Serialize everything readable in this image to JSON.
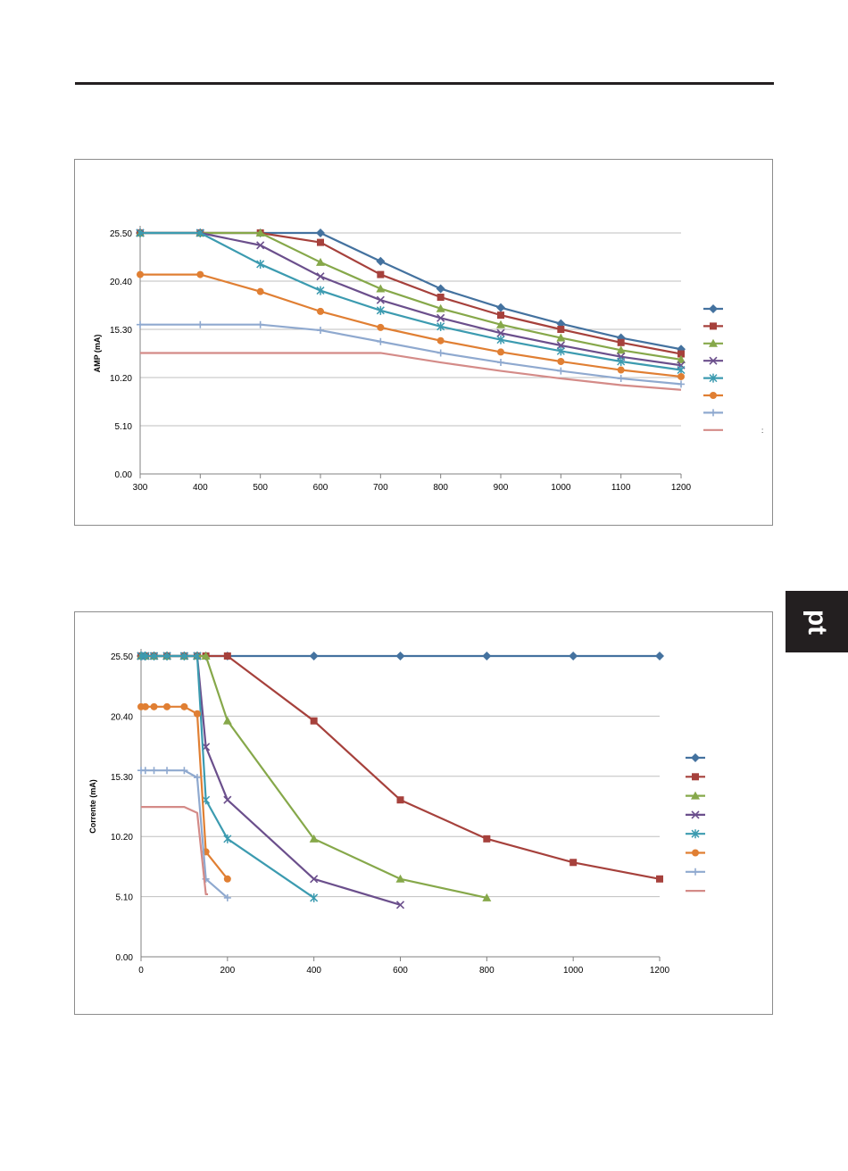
{
  "page": {
    "side_tab": "pt",
    "stray_mark": ":"
  },
  "chart_data": [
    {
      "type": "line",
      "title": "",
      "xlabel": "",
      "ylabel": "AMP (mA)",
      "x": [
        300,
        400,
        500,
        600,
        700,
        800,
        900,
        1000,
        1100,
        1200
      ],
      "x_ticks": [
        300,
        400,
        500,
        600,
        700,
        800,
        900,
        1000,
        1100,
        1200
      ],
      "x_tick_labels": [
        "300",
        "400",
        "500",
        "600",
        "700",
        "800",
        "900",
        "1000",
        "1100",
        "1200"
      ],
      "x_scale": "categorical",
      "y_ticks": [
        0,
        5.1,
        10.2,
        15.3,
        20.4,
        25.5
      ],
      "y_tick_labels": [
        "0.00",
        "5.10",
        "10.20",
        "15.30",
        "20.40",
        "25.50"
      ],
      "ylim": [
        0,
        25.5
      ],
      "grid": "horizontal",
      "legend": "right, entries without text",
      "series": [
        {
          "color": "#44729f",
          "marker": "diamond",
          "points": [
            [
              300,
              25.5
            ],
            [
              400,
              25.5
            ],
            [
              500,
              25.5
            ],
            [
              600,
              25.5
            ],
            [
              700,
              22.5
            ],
            [
              800,
              19.6
            ],
            [
              900,
              17.6
            ],
            [
              1000,
              15.9
            ],
            [
              1100,
              14.4
            ],
            [
              1200,
              13.2
            ]
          ]
        },
        {
          "color": "#a6413c",
          "marker": "square",
          "points": [
            [
              300,
              25.5
            ],
            [
              400,
              25.5
            ],
            [
              500,
              25.5
            ],
            [
              600,
              24.5
            ],
            [
              700,
              21.1
            ],
            [
              800,
              18.7
            ],
            [
              900,
              16.8
            ],
            [
              1000,
              15.3
            ],
            [
              1100,
              13.9
            ],
            [
              1200,
              12.7
            ]
          ]
        },
        {
          "color": "#86a84a",
          "marker": "triangle",
          "points": [
            [
              300,
              25.5
            ],
            [
              400,
              25.5
            ],
            [
              500,
              25.5
            ],
            [
              600,
              22.4
            ],
            [
              700,
              19.6
            ],
            [
              800,
              17.5
            ],
            [
              900,
              15.8
            ],
            [
              1000,
              14.4
            ],
            [
              1100,
              13.1
            ],
            [
              1200,
              12.1
            ]
          ]
        },
        {
          "color": "#6b4f8c",
          "marker": "x",
          "points": [
            [
              300,
              25.5
            ],
            [
              400,
              25.5
            ],
            [
              500,
              24.2
            ],
            [
              600,
              20.9
            ],
            [
              700,
              18.4
            ],
            [
              800,
              16.5
            ],
            [
              900,
              14.9
            ],
            [
              1000,
              13.6
            ],
            [
              1100,
              12.4
            ],
            [
              1200,
              11.5
            ]
          ]
        },
        {
          "color": "#3c9bb0",
          "marker": "asterisk",
          "points": [
            [
              300,
              25.5
            ],
            [
              400,
              25.5
            ],
            [
              500,
              22.2
            ],
            [
              600,
              19.4
            ],
            [
              700,
              17.3
            ],
            [
              800,
              15.6
            ],
            [
              900,
              14.2
            ],
            [
              1000,
              13.0
            ],
            [
              1100,
              11.9
            ],
            [
              1200,
              11.0
            ]
          ]
        },
        {
          "color": "#e07f33",
          "marker": "circle",
          "points": [
            [
              300,
              21.1
            ],
            [
              400,
              21.1
            ],
            [
              500,
              19.3
            ],
            [
              600,
              17.2
            ],
            [
              700,
              15.5
            ],
            [
              800,
              14.1
            ],
            [
              900,
              12.9
            ],
            [
              1000,
              11.9
            ],
            [
              1100,
              11.0
            ],
            [
              1200,
              10.3
            ]
          ]
        },
        {
          "color": "#8fa9cf",
          "marker": "plus",
          "points": [
            [
              300,
              15.8
            ],
            [
              400,
              15.8
            ],
            [
              500,
              15.8
            ],
            [
              600,
              15.2
            ],
            [
              700,
              14.0
            ],
            [
              800,
              12.8
            ],
            [
              900,
              11.8
            ],
            [
              1000,
              10.9
            ],
            [
              1100,
              10.1
            ],
            [
              1200,
              9.5
            ]
          ]
        },
        {
          "color": "#d48b88",
          "marker": "none",
          "points": [
            [
              300,
              12.8
            ],
            [
              400,
              12.8
            ],
            [
              500,
              12.8
            ],
            [
              600,
              12.8
            ],
            [
              700,
              12.8
            ],
            [
              800,
              11.8
            ],
            [
              900,
              10.9
            ],
            [
              1000,
              10.1
            ],
            [
              1100,
              9.4
            ],
            [
              1200,
              8.9
            ]
          ]
        }
      ]
    },
    {
      "type": "line",
      "title": "",
      "xlabel": "",
      "ylabel": "Corrente (mA)",
      "x_ticks": [
        0,
        200,
        400,
        600,
        800,
        1000,
        1200
      ],
      "x_tick_labels": [
        "0",
        "200",
        "400",
        "600",
        "800",
        "1000",
        "1200"
      ],
      "x_scale": "linear",
      "xlim": [
        0,
        1200
      ],
      "y_ticks": [
        0,
        5.1,
        10.2,
        15.3,
        20.4,
        25.5
      ],
      "y_tick_labels": [
        "0.00",
        "5.10",
        "10.20",
        "15.30",
        "20.40",
        "25.50"
      ],
      "ylim": [
        0,
        25.5
      ],
      "grid": "horizontal",
      "legend": "right, entries without text",
      "series": [
        {
          "color": "#44729f",
          "marker": "diamond",
          "points": [
            [
              0,
              25.5
            ],
            [
              10,
              25.5
            ],
            [
              30,
              25.5
            ],
            [
              60,
              25.5
            ],
            [
              100,
              25.5
            ],
            [
              130,
              25.5
            ],
            [
              150,
              25.5
            ],
            [
              200,
              25.5
            ],
            [
              400,
              25.5
            ],
            [
              600,
              25.5
            ],
            [
              800,
              25.5
            ],
            [
              1000,
              25.5
            ],
            [
              1200,
              25.5
            ]
          ]
        },
        {
          "color": "#a6413c",
          "marker": "square",
          "points": [
            [
              0,
              25.5
            ],
            [
              10,
              25.5
            ],
            [
              30,
              25.5
            ],
            [
              60,
              25.5
            ],
            [
              100,
              25.5
            ],
            [
              130,
              25.5
            ],
            [
              150,
              25.5
            ],
            [
              200,
              25.5
            ],
            [
              400,
              20.0
            ],
            [
              600,
              13.3
            ],
            [
              800,
              10.0
            ],
            [
              1000,
              8.0
            ],
            [
              1200,
              6.6
            ]
          ]
        },
        {
          "color": "#86a84a",
          "marker": "triangle",
          "points": [
            [
              0,
              25.5
            ],
            [
              10,
              25.5
            ],
            [
              30,
              25.5
            ],
            [
              60,
              25.5
            ],
            [
              100,
              25.5
            ],
            [
              130,
              25.5
            ],
            [
              150,
              25.5
            ],
            [
              200,
              20.0
            ],
            [
              400,
              10.0
            ],
            [
              600,
              6.6
            ],
            [
              800,
              5.0
            ]
          ]
        },
        {
          "color": "#6b4f8c",
          "marker": "x",
          "points": [
            [
              0,
              25.5
            ],
            [
              10,
              25.5
            ],
            [
              30,
              25.5
            ],
            [
              60,
              25.5
            ],
            [
              100,
              25.5
            ],
            [
              130,
              25.5
            ],
            [
              150,
              17.8
            ],
            [
              200,
              13.3
            ],
            [
              400,
              6.6
            ],
            [
              600,
              4.4
            ]
          ]
        },
        {
          "color": "#3c9bb0",
          "marker": "asterisk",
          "points": [
            [
              0,
              25.5
            ],
            [
              10,
              25.5
            ],
            [
              30,
              25.5
            ],
            [
              60,
              25.5
            ],
            [
              100,
              25.5
            ],
            [
              130,
              25.5
            ],
            [
              150,
              13.3
            ],
            [
              200,
              10.0
            ],
            [
              400,
              5.0
            ]
          ]
        },
        {
          "color": "#e07f33",
          "marker": "circle",
          "points": [
            [
              0,
              21.2
            ],
            [
              10,
              21.2
            ],
            [
              30,
              21.2
            ],
            [
              60,
              21.2
            ],
            [
              100,
              21.2
            ],
            [
              130,
              20.6
            ],
            [
              150,
              8.9
            ],
            [
              200,
              6.6
            ]
          ]
        },
        {
          "color": "#8fa9cf",
          "marker": "plus",
          "points": [
            [
              0,
              15.8
            ],
            [
              10,
              15.8
            ],
            [
              30,
              15.8
            ],
            [
              60,
              15.8
            ],
            [
              100,
              15.8
            ],
            [
              130,
              15.2
            ],
            [
              150,
              6.6
            ],
            [
              200,
              5.0
            ]
          ]
        },
        {
          "color": "#d48b88",
          "marker": "none",
          "points": [
            [
              0,
              12.7
            ],
            [
              10,
              12.7
            ],
            [
              30,
              12.7
            ],
            [
              60,
              12.7
            ],
            [
              100,
              12.7
            ],
            [
              130,
              12.2
            ],
            [
              150,
              5.3
            ],
            [
              155,
              5.3
            ]
          ]
        }
      ]
    }
  ]
}
